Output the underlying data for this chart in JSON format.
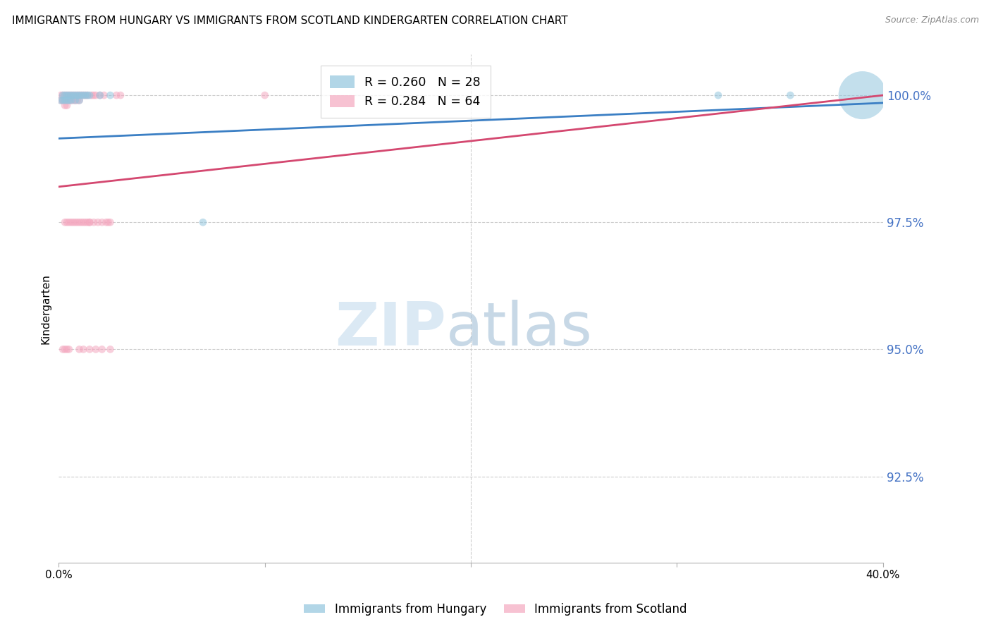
{
  "title": "IMMIGRANTS FROM HUNGARY VS IMMIGRANTS FROM SCOTLAND KINDERGARTEN CORRELATION CHART",
  "source": "Source: ZipAtlas.com",
  "ylabel": "Kindergarten",
  "y_tick_labels": [
    "100.0%",
    "97.5%",
    "95.0%",
    "92.5%"
  ],
  "y_tick_values": [
    1.0,
    0.975,
    0.95,
    0.925
  ],
  "xlim": [
    0.0,
    0.4
  ],
  "ylim": [
    0.908,
    1.008
  ],
  "legend_hungary_r": "R = 0.260",
  "legend_hungary_n": "N = 28",
  "legend_scotland_r": "R = 0.284",
  "legend_scotland_n": "N = 64",
  "hungary_color": "#92c5de",
  "scotland_color": "#f4a9c0",
  "hungary_line_color": "#3b7fc4",
  "scotland_line_color": "#d44870",
  "hungary_data_x": [
    0.001,
    0.002,
    0.002,
    0.003,
    0.003,
    0.004,
    0.004,
    0.005,
    0.005,
    0.006,
    0.006,
    0.007,
    0.008,
    0.008,
    0.009,
    0.01,
    0.01,
    0.011,
    0.012,
    0.013,
    0.014,
    0.015,
    0.02,
    0.025,
    0.07,
    0.32,
    0.355,
    0.39
  ],
  "hungary_data_y": [
    0.999,
    1.0,
    0.999,
    1.0,
    0.999,
    1.0,
    0.999,
    1.0,
    0.999,
    1.0,
    0.999,
    1.0,
    1.0,
    0.999,
    1.0,
    1.0,
    0.999,
    1.0,
    1.0,
    1.0,
    1.0,
    1.0,
    1.0,
    1.0,
    0.975,
    1.0,
    1.0,
    1.0
  ],
  "hungary_sizes": [
    15,
    15,
    15,
    15,
    15,
    15,
    15,
    15,
    15,
    15,
    15,
    15,
    15,
    15,
    15,
    15,
    15,
    15,
    15,
    15,
    15,
    15,
    15,
    15,
    15,
    15,
    15,
    600
  ],
  "scotland_data_x": [
    0.001,
    0.001,
    0.002,
    0.002,
    0.003,
    0.003,
    0.003,
    0.004,
    0.004,
    0.004,
    0.005,
    0.005,
    0.006,
    0.006,
    0.007,
    0.007,
    0.008,
    0.008,
    0.009,
    0.009,
    0.01,
    0.01,
    0.011,
    0.012,
    0.013,
    0.014,
    0.015,
    0.016,
    0.017,
    0.018,
    0.02,
    0.022,
    0.024,
    0.025,
    0.028,
    0.03,
    0.003,
    0.004,
    0.005,
    0.006,
    0.007,
    0.008,
    0.009,
    0.01,
    0.011,
    0.012,
    0.013,
    0.014,
    0.015,
    0.017,
    0.019,
    0.021,
    0.023,
    0.1,
    0.002,
    0.003,
    0.004,
    0.005,
    0.01,
    0.012,
    0.015,
    0.018,
    0.021,
    0.025
  ],
  "scotland_data_y": [
    1.0,
    0.999,
    1.0,
    0.999,
    1.0,
    0.999,
    0.998,
    1.0,
    0.999,
    0.998,
    1.0,
    0.999,
    1.0,
    0.999,
    1.0,
    0.999,
    1.0,
    0.999,
    1.0,
    0.999,
    1.0,
    0.999,
    1.0,
    1.0,
    1.0,
    1.0,
    0.975,
    1.0,
    1.0,
    1.0,
    1.0,
    1.0,
    0.975,
    0.975,
    1.0,
    1.0,
    0.975,
    0.975,
    0.975,
    0.975,
    0.975,
    0.975,
    0.975,
    0.975,
    0.975,
    0.975,
    0.975,
    0.975,
    0.975,
    0.975,
    0.975,
    0.975,
    0.975,
    1.0,
    0.95,
    0.95,
    0.95,
    0.95,
    0.95,
    0.95,
    0.95,
    0.95,
    0.95,
    0.95
  ],
  "scotland_sizes": [
    15,
    15,
    15,
    15,
    15,
    15,
    15,
    15,
    15,
    15,
    15,
    15,
    15,
    15,
    15,
    15,
    15,
    15,
    15,
    15,
    15,
    15,
    15,
    15,
    15,
    15,
    15,
    15,
    15,
    15,
    15,
    15,
    15,
    15,
    15,
    15,
    15,
    15,
    15,
    15,
    15,
    15,
    15,
    15,
    15,
    15,
    15,
    15,
    15,
    15,
    15,
    15,
    15,
    15,
    15,
    15,
    15,
    15,
    15,
    15,
    15,
    15,
    15,
    15
  ]
}
